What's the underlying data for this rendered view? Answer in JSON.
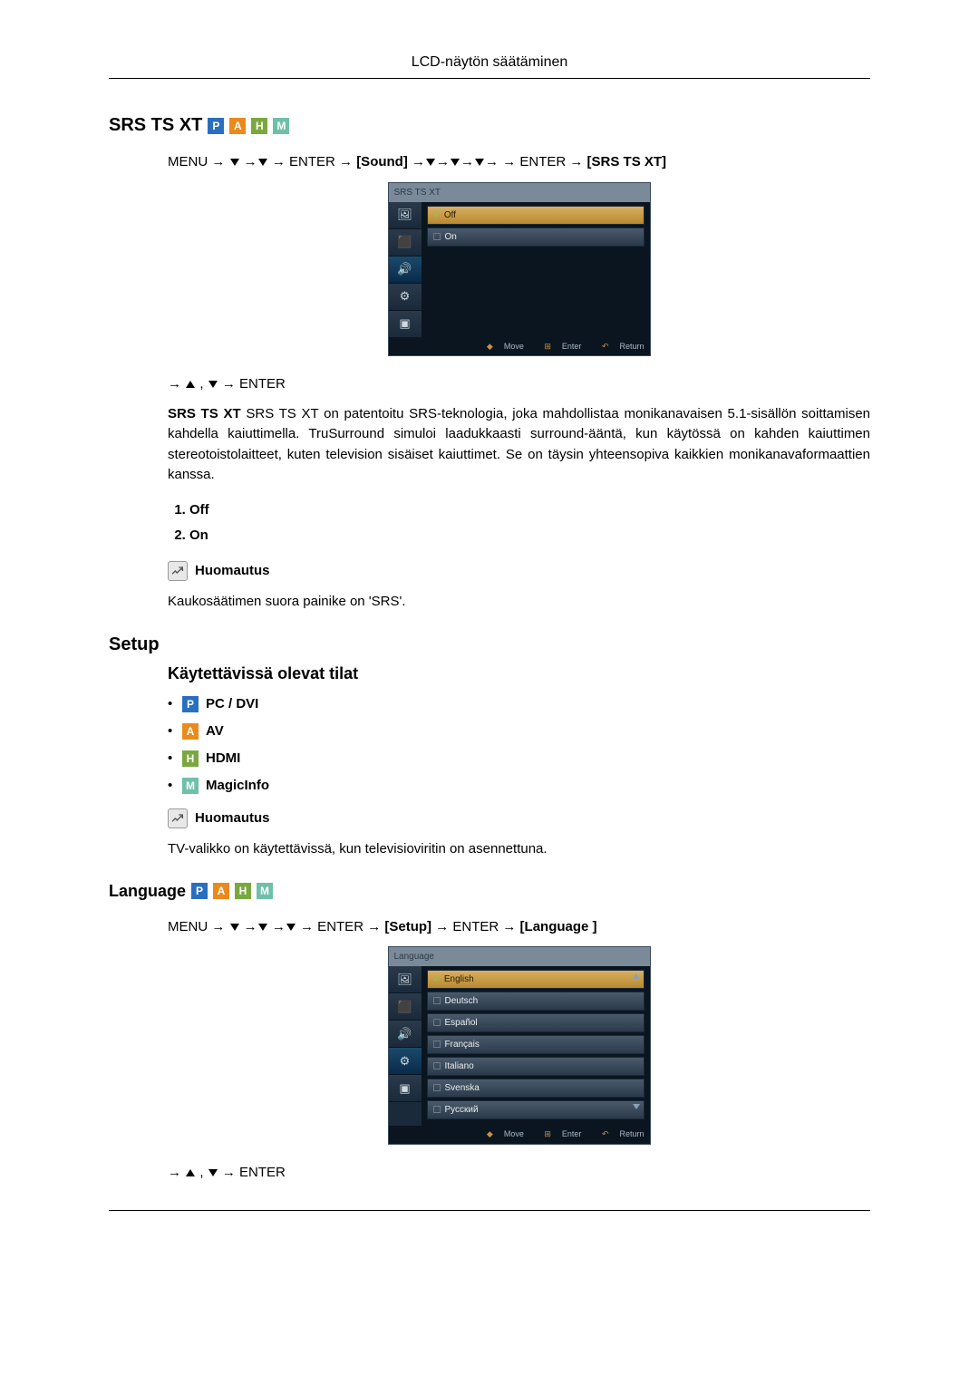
{
  "header": {
    "title": "LCD-näytön säätäminen"
  },
  "badges": {
    "P": "P",
    "A": "A",
    "H": "H",
    "M": "M"
  },
  "srs": {
    "title": "SRS TS XT",
    "path_pre": "MENU → ",
    "path_mid1": " → ENTER → ",
    "path_sound": "[Sound]",
    "path_mid2": " → ENTER → ",
    "path_end": "[SRS TS XT]",
    "osd": {
      "title": "SRS TS XT",
      "options": [
        {
          "label": "Off",
          "checked": true,
          "selected": true
        },
        {
          "label": "On",
          "checked": false,
          "selected": false
        }
      ],
      "footer": {
        "move": "Move",
        "enter": "Enter",
        "return": "Return"
      }
    },
    "nav2": " → ENTER",
    "body": "SRS TS XT on patentoitu SRS-teknologia, joka mahdollistaa monikanavaisen 5.1-sisällön soittamisen kahdella kaiuttimella. TruSurround simuloi laadukkaasti surround-ääntä, kun käytössä on kahden kaiuttimen stereotoistolaitteet, kuten television sisäiset kaiuttimet. Se on täysin yhteensopiva kaikkien monikanavaformaattien kanssa.",
    "list": [
      "Off",
      "On"
    ],
    "note_label": "Huomautus",
    "note_text": "Kaukosäätimen suora painike on 'SRS'."
  },
  "setup": {
    "title": "Setup",
    "subheading": "Käytettävissä olevat tilat",
    "modes": [
      {
        "badge": "P",
        "label": "PC / DVI",
        "color": "#2a6fbf"
      },
      {
        "badge": "A",
        "label": "AV",
        "color": "#e98a1d"
      },
      {
        "badge": "H",
        "label": "HDMI",
        "color": "#7aa83f"
      },
      {
        "badge": "M",
        "label": "MagicInfo",
        "color": "#6fc0a8"
      }
    ],
    "note_label": "Huomautus",
    "note_text": "TV-valikko on käytettävissä, kun televisioviritin on asennettuna."
  },
  "language": {
    "title": "Language",
    "path_pre": "MENU → ",
    "path_mid1": " → ENTER → ",
    "path_setup": "[Setup]",
    "path_mid2": " → ENTER → ",
    "path_end": "[Language ]",
    "osd": {
      "title": "Language",
      "options": [
        {
          "label": "English",
          "checked": true,
          "selected": true,
          "scroll": "up"
        },
        {
          "label": "Deutsch",
          "checked": false
        },
        {
          "label": "Español",
          "checked": false
        },
        {
          "label": "Français",
          "checked": false
        },
        {
          "label": "Italiano",
          "checked": false
        },
        {
          "label": "Svenska",
          "checked": false
        },
        {
          "label": "Русский",
          "checked": false,
          "scroll": "down"
        }
      ],
      "footer": {
        "move": "Move",
        "enter": "Enter",
        "return": "Return"
      }
    },
    "nav2": " → ENTER"
  }
}
